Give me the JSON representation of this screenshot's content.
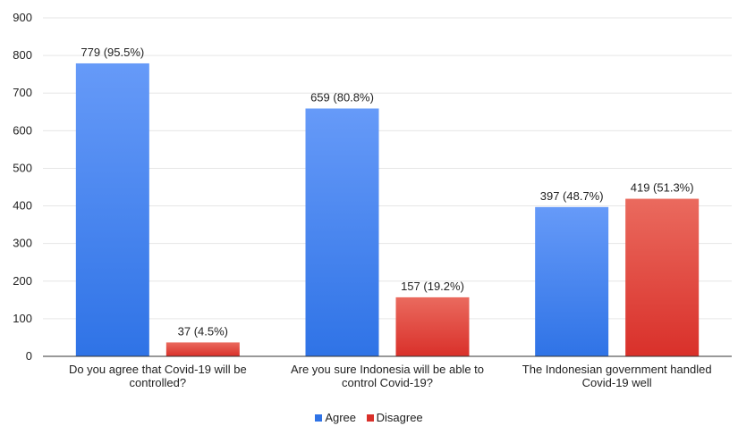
{
  "chart_data": {
    "type": "bar",
    "categories": [
      [
        "Do you agree that Covid-19 will be",
        "controlled?"
      ],
      [
        "Are you sure Indonesia will be able to",
        "control Covid-19?"
      ],
      [
        "The Indonesian government handled",
        "Covid-19 well"
      ]
    ],
    "series": [
      {
        "name": "Agree",
        "values": [
          779,
          659,
          397
        ],
        "labels": [
          "779 (95.5%)",
          "659 (80.8%)",
          "397 (48.7%)"
        ]
      },
      {
        "name": "Disagree",
        "values": [
          37,
          157,
          419
        ],
        "labels": [
          "37 (4.5%)",
          "157 (19.2%)",
          "419 (51.3%)"
        ]
      }
    ],
    "ylim": [
      0,
      900
    ],
    "yticks": [
      0,
      100,
      200,
      300,
      400,
      500,
      600,
      700,
      800,
      900
    ],
    "grid": true,
    "legend_position": "bottom",
    "colors": {
      "Agree": [
        "#669af8",
        "#2f73e6"
      ],
      "Disagree": [
        "#ea6a5e",
        "#d9302a"
      ],
      "grid": "#e6e6e6",
      "axis": "#333333"
    }
  }
}
